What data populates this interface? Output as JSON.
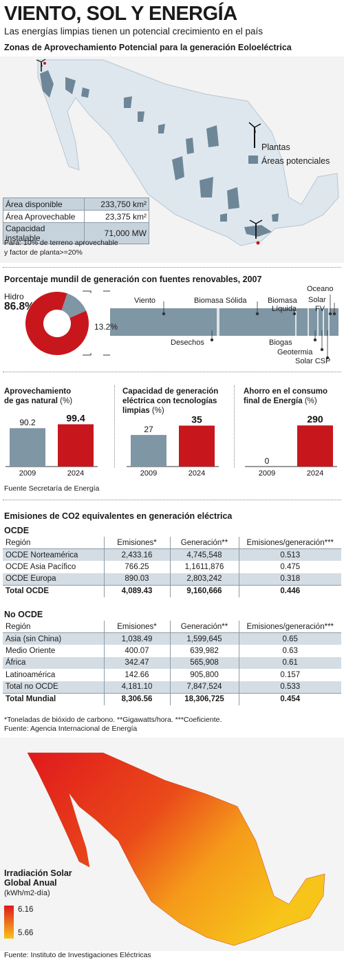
{
  "header": {
    "title": "VIENTO, SOL Y ENERGÍA",
    "subtitle": "Las energías limpias tienen un potencial crecimiento en el país"
  },
  "map1": {
    "title": "Zonas de Aprovechamiento Potencial para la generación Eoloeléctrica",
    "legend_plants": "Plantas",
    "legend_areas": "Áreas potenciales",
    "table": [
      {
        "label": "Área disponible",
        "value": "233,750 km²"
      },
      {
        "label": "Área Aprovechable",
        "value": "23,375 km²"
      },
      {
        "label": "Capacidad instalable",
        "value": "71,000 MW"
      }
    ],
    "note_line1": "Para: 10% de terreno aprovechable",
    "note_line2": "y factor de planta>=20%",
    "colors": {
      "land": "#dfe7ee",
      "areas": "#6e8798",
      "plant_dot": "#c8161d"
    }
  },
  "renewables": {
    "title": "Porcentaje mundil de generación con fuentes renovables, 2007",
    "hydro_label": "Hidro",
    "hydro_value": "86.8%",
    "other_value": "13.2%",
    "labels_top": [
      "Viento",
      "Biomasa Sólida",
      "Biomasa Líquida",
      "Oceano",
      "Solar FV"
    ],
    "labels_bottom": [
      "Desechos",
      "Biogas",
      "Geotermia",
      "Solar CSP"
    ],
    "biomasa_liquida_l1": "Biomasa",
    "biomasa_liquida_l2": "Líquida",
    "oceano": "Oceano",
    "solar": "Solar",
    "fv": "FV"
  },
  "bar_charts_titles": {
    "c1_l1": "Aprovechamiento",
    "c1_l2": "de gas natural",
    "c1_unit": "(%)",
    "c2_l1": "Capacidad de generación",
    "c2_l2": "eléctrica con tecnologías",
    "c2_l3": "limpias",
    "c2_unit": "(%)",
    "c3_l1": "Ahorro en el consumo",
    "c3_l2": "final de Energía",
    "c3_unit": "(%)"
  },
  "source1": "Fuente Secretaría de Energía",
  "chart_data": [
    {
      "type": "pie",
      "title": "Porcentaje mundil de generación con fuentes renovables, 2007",
      "categories": [
        "Hidro",
        "Otras"
      ],
      "values": [
        86.8,
        13.2
      ],
      "colors": [
        "#c8161d",
        "#7f96a4"
      ]
    },
    {
      "type": "bar",
      "title": "Porcentaje mundil de generación con fuentes renovables, 2007 (desglose 13.2%)",
      "categories": [
        "Viento",
        "Desechos",
        "Biomasa Sólida",
        "Biogas",
        "Biomasa Líquida",
        "Geotermia",
        "Oceano",
        "Solar FV",
        "Solar CSP"
      ]
    },
    {
      "type": "bar",
      "title": "Aprovechamiento de gas natural (%)",
      "categories": [
        "2009",
        "2024"
      ],
      "values": [
        90.2,
        99.4
      ],
      "labels": [
        "90.2",
        "99.4"
      ],
      "colors": [
        "#7f96a4",
        "#c8161d"
      ],
      "ylim": [
        0,
        110
      ]
    },
    {
      "type": "bar",
      "title": "Capacidad de generación eléctrica con tecnologías limpias (%)",
      "categories": [
        "2009",
        "2024"
      ],
      "values": [
        27,
        35
      ],
      "labels": [
        "27",
        "35"
      ],
      "colors": [
        "#7f96a4",
        "#c8161d"
      ],
      "ylim": [
        0,
        40
      ]
    },
    {
      "type": "bar",
      "title": "Ahorro en el consumo final de Energía (%)",
      "categories": [
        "2009",
        "2024"
      ],
      "values": [
        0,
        290
      ],
      "labels": [
        "0",
        "290"
      ],
      "colors": [
        "#7f96a4",
        "#c8161d"
      ],
      "ylim": [
        0,
        330
      ]
    }
  ],
  "emissions": {
    "title": "Emisiones de CO2 equivalentes en generación eléctrica",
    "oecd_heading": "OCDE",
    "non_oecd_heading": "No OCDE",
    "columns": [
      "Región",
      "Emisiones*",
      "Generación**",
      "Emisiones/generación***"
    ],
    "oecd_rows": [
      [
        "OCDE Norteamérica",
        "2,433.16",
        "4,745,548",
        "0.513"
      ],
      [
        "OCDE Asia Pacífico",
        "766.25",
        "1,1611,876",
        "0.475"
      ],
      [
        "OCDE Europa",
        "890.03",
        "2,803,242",
        "0.318"
      ]
    ],
    "oecd_total": [
      "Total OCDE",
      "4,089.43",
      "9,160,666",
      "0.446"
    ],
    "non_oecd_rows": [
      [
        "Asia (sin China)",
        "1,038.49",
        "1,599,645",
        "0.65"
      ],
      [
        "Medio Oriente",
        "400.07",
        "639,982",
        "0.63"
      ],
      [
        "África",
        "342.47",
        "565,908",
        "0.61"
      ],
      [
        "Latinoamérica",
        "142.66",
        "905,800",
        "0.157"
      ],
      [
        "Total no OCDE",
        "4,181.10",
        "7,847,524",
        "0.533"
      ]
    ],
    "world_total": [
      "Total Mundial",
      "8,306.56",
      "18,306,725",
      "0.454"
    ],
    "footnote": "*Toneladas de bióxido de carbono. **Gigawatts/hora. ***Coeficiente.",
    "source": "Fuente: Agencia Internacional de Energía"
  },
  "solar": {
    "title_l1": "Irradiación Solar",
    "title_l2": "Global Anual",
    "unit": "(kWh/m2-día)",
    "max": "6.16",
    "min": "5.66",
    "source": "Fuente: Instituto de Investigaciones Eléctricas",
    "colors": {
      "high": "#e0191c",
      "low": "#f7c41a"
    }
  }
}
